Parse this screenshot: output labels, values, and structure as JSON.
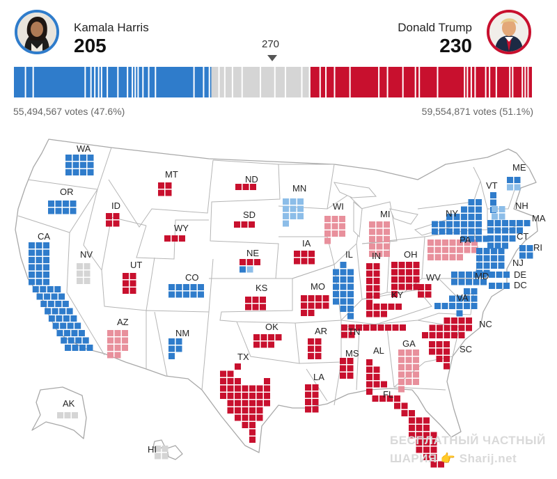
{
  "candidates": {
    "dem": {
      "name": "Kamala Harris",
      "electoral_votes": "205",
      "popular_vote": "55,494,567 votes (47.6%)",
      "color": "#2f7ccb",
      "avatar_icon": "harris-portrait-icon"
    },
    "rep": {
      "name": "Donald Trump",
      "electoral_votes": "230",
      "popular_vote": "59,554,871 votes (51.1%)",
      "color": "#c8102e",
      "avatar_icon": "trump-portrait-icon"
    }
  },
  "threshold": "270",
  "colors": {
    "dem": "#2f7ccb",
    "dem_lean": "#8cbde8",
    "rep": "#c8102e",
    "rep_lean": "#e8909c",
    "undecided": "#d5d5d5",
    "border": "#a8a8a8"
  },
  "watermark": {
    "line1": "БЕСПЛАТНЫЙ ЧАСТНЫЙ",
    "line2": "ШАРИЯ 👉 Sharij.net"
  },
  "chart_data": {
    "type": "map",
    "title": "",
    "electoral_bar": {
      "dem": 205,
      "undecided": 103,
      "rep": 230,
      "total": 538
    },
    "states": [
      {
        "abbr": "WA",
        "ev": 12,
        "status": "dem"
      },
      {
        "abbr": "OR",
        "ev": 8,
        "status": "dem"
      },
      {
        "abbr": "CA",
        "ev": 54,
        "status": "dem"
      },
      {
        "abbr": "NV",
        "ev": 6,
        "status": "undecided"
      },
      {
        "abbr": "ID",
        "ev": 4,
        "status": "rep"
      },
      {
        "abbr": "MT",
        "ev": 4,
        "status": "rep"
      },
      {
        "abbr": "WY",
        "ev": 3,
        "status": "rep"
      },
      {
        "abbr": "UT",
        "ev": 6,
        "status": "rep"
      },
      {
        "abbr": "AZ",
        "ev": 11,
        "status": "rep_lean"
      },
      {
        "abbr": "CO",
        "ev": 10,
        "status": "dem"
      },
      {
        "abbr": "NM",
        "ev": 5,
        "status": "dem"
      },
      {
        "abbr": "ND",
        "ev": 3,
        "status": "rep"
      },
      {
        "abbr": "SD",
        "ev": 3,
        "status": "rep"
      },
      {
        "abbr": "NE",
        "ev": 5,
        "status": "mixed"
      },
      {
        "abbr": "KS",
        "ev": 6,
        "status": "rep"
      },
      {
        "abbr": "OK",
        "ev": 7,
        "status": "rep"
      },
      {
        "abbr": "TX",
        "ev": 40,
        "status": "rep"
      },
      {
        "abbr": "MN",
        "ev": 10,
        "status": "dem_lean"
      },
      {
        "abbr": "IA",
        "ev": 6,
        "status": "rep"
      },
      {
        "abbr": "MO",
        "ev": 10,
        "status": "rep"
      },
      {
        "abbr": "AR",
        "ev": 6,
        "status": "rep"
      },
      {
        "abbr": "LA",
        "ev": 8,
        "status": "rep"
      },
      {
        "abbr": "WI",
        "ev": 10,
        "status": "rep_lean"
      },
      {
        "abbr": "IL",
        "ev": 19,
        "status": "dem"
      },
      {
        "abbr": "MI",
        "ev": 15,
        "status": "rep_lean"
      },
      {
        "abbr": "IN",
        "ev": 11,
        "status": "rep"
      },
      {
        "abbr": "OH",
        "ev": 17,
        "status": "rep"
      },
      {
        "abbr": "KY",
        "ev": 8,
        "status": "rep"
      },
      {
        "abbr": "TN",
        "ev": 11,
        "status": "rep"
      },
      {
        "abbr": "MS",
        "ev": 6,
        "status": "rep"
      },
      {
        "abbr": "AL",
        "ev": 9,
        "status": "rep"
      },
      {
        "abbr": "GA",
        "ev": 16,
        "status": "rep_lean"
      },
      {
        "abbr": "FL",
        "ev": 30,
        "status": "rep"
      },
      {
        "abbr": "SC",
        "ev": 9,
        "status": "rep"
      },
      {
        "abbr": "NC",
        "ev": 16,
        "status": "rep"
      },
      {
        "abbr": "VA",
        "ev": 13,
        "status": "dem"
      },
      {
        "abbr": "WV",
        "ev": 4,
        "status": "rep"
      },
      {
        "abbr": "PA",
        "ev": 19,
        "status": "rep_lean"
      },
      {
        "abbr": "NY",
        "ev": 28,
        "status": "dem"
      },
      {
        "abbr": "VT",
        "ev": 3,
        "status": "dem"
      },
      {
        "abbr": "NH",
        "ev": 4,
        "status": "dem_lean"
      },
      {
        "abbr": "ME",
        "ev": 4,
        "status": "mixed_me"
      },
      {
        "abbr": "MA",
        "ev": 11,
        "status": "dem"
      },
      {
        "abbr": "RI",
        "ev": 4,
        "status": "dem"
      },
      {
        "abbr": "CT",
        "ev": 7,
        "status": "dem"
      },
      {
        "abbr": "NJ",
        "ev": 14,
        "status": "dem"
      },
      {
        "abbr": "DE",
        "ev": 3,
        "status": "dem"
      },
      {
        "abbr": "MD",
        "ev": 10,
        "status": "dem"
      },
      {
        "abbr": "DC",
        "ev": 3,
        "status": "dem"
      },
      {
        "abbr": "AK",
        "ev": 3,
        "status": "undecided"
      },
      {
        "abbr": "HI",
        "ev": 4,
        "status": "undecided"
      }
    ]
  }
}
